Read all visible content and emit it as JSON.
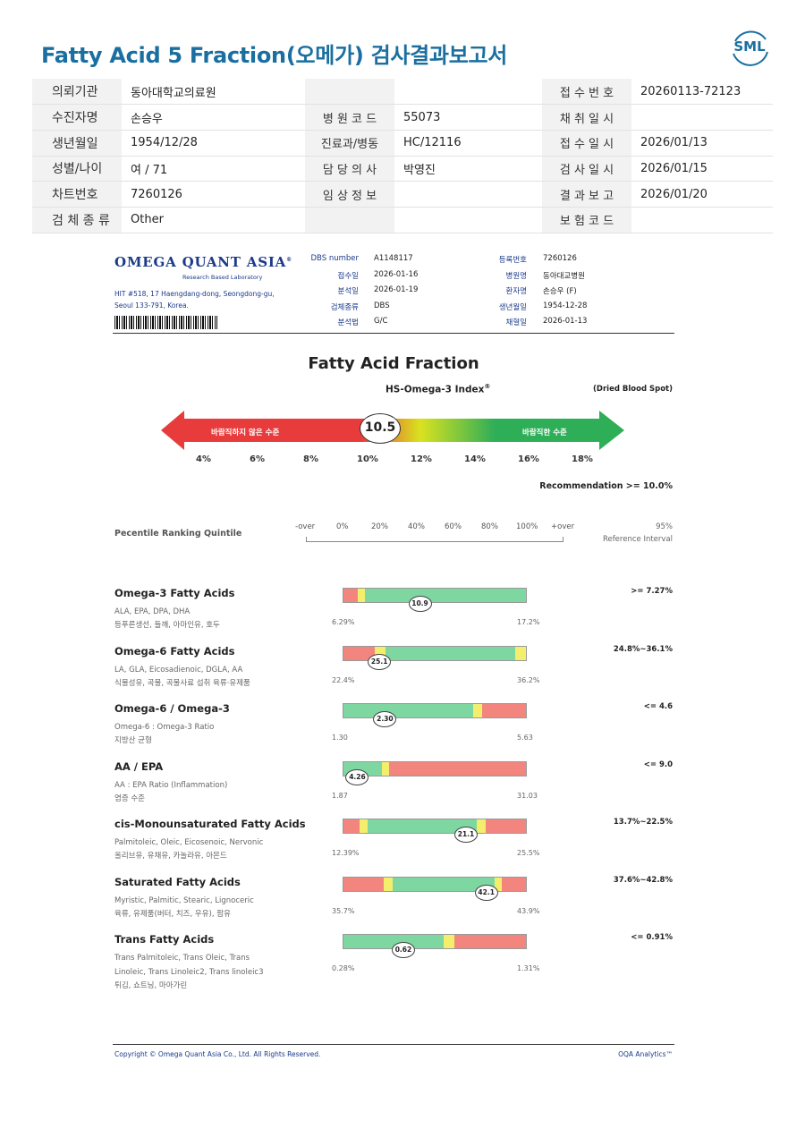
{
  "title": "Fatty Acid 5 Fraction(오메가) 검사결과보고서",
  "logo": "SML",
  "info": [
    [
      {
        "k": "의뢰기관",
        "v": "동아대학교의료원"
      },
      {
        "k": "",
        "v": ""
      },
      {
        "k": "접 수 번 호",
        "v": "20260113-72123"
      }
    ],
    [
      {
        "k": "수진자명",
        "v": "손승우"
      },
      {
        "k": "병 원 코 드",
        "v": "55073"
      },
      {
        "k": "채 취 일 시",
        "v": ""
      }
    ],
    [
      {
        "k": "생년월일",
        "v": "1954/12/28"
      },
      {
        "k": "진료과/병동",
        "v": "HC/12116"
      },
      {
        "k": "접 수 일 시",
        "v": "2026/01/13"
      }
    ],
    [
      {
        "k": "성별/나이",
        "v": "여 / 71"
      },
      {
        "k": "담 당 의 사",
        "v": "박영진"
      },
      {
        "k": "검 사 일 시",
        "v": "2026/01/15"
      }
    ],
    [
      {
        "k": "차트번호",
        "v": "7260126"
      },
      {
        "k": "임 상 정 보",
        "v": ""
      },
      {
        "k": "결 과 보 고",
        "v": "2026/01/20"
      }
    ],
    [
      {
        "k": "검 체 종 류",
        "v": "Other"
      },
      {
        "k": "",
        "v": ""
      },
      {
        "k": "보 험 코 드",
        "v": ""
      }
    ]
  ],
  "lab": {
    "brand": "OMEGA QUANT ASIA",
    "reg": "®",
    "subtitle": "Research Based Laboratory",
    "address": "HIT #518, 17 Haengdang-dong, Seongdong-gu, Seoul 133-791, Korea."
  },
  "meta_left": [
    {
      "k": "DBS number",
      "v": "A1148117"
    },
    {
      "k": "접수일",
      "v": "2026-01-16"
    },
    {
      "k": "분석일",
      "v": "2026-01-19"
    },
    {
      "k": "검체종류",
      "v": "DBS"
    },
    {
      "k": "분석법",
      "v": "G/C"
    }
  ],
  "meta_right": [
    {
      "k": "등록번호",
      "v": "7260126"
    },
    {
      "k": "병원명",
      "v": "동아대교병원"
    },
    {
      "k": "환자명",
      "v": "손승우 (F)"
    },
    {
      "k": "생년월일",
      "v": "1954-12-28"
    },
    {
      "k": "채혈일",
      "v": "2026-01-13"
    }
  ],
  "chart_title": "Fatty Acid Fraction",
  "index": {
    "label": "HS-Omega-3 Index",
    "sup": "®",
    "specimen": "(Dried Blood Spot)",
    "bad_label": "바람직하지 않은 수준",
    "good_label": "바람직한 수준",
    "value": "10.5",
    "value_num": 10.5,
    "ticks": [
      "4%",
      "6%",
      "8%",
      "10%",
      "12%",
      "14%",
      "16%",
      "18%"
    ],
    "recommendation": "Recommendation  >= 10.0%",
    "colors": {
      "red": "#e83b3b",
      "yellow": "#d9e21f",
      "green": "#2fae58"
    }
  },
  "percentile": {
    "label": "Pecentile Ranking Quintile",
    "scale": [
      "-over",
      "0%",
      "20%",
      "40%",
      "60%",
      "80%",
      "100%",
      "+over"
    ],
    "ref_title_1": "95%",
    "ref_title_2": "Reference Interval"
  },
  "chart_data": {
    "type": "table",
    "rows": [
      {
        "name": "Omega-3 Fatty Acids",
        "sub": "ALA, EPA, DPA, DHA",
        "foods": "등푸른생선, 들깨, 아마인유, 호두",
        "value": "10.9",
        "lo": "6.29%",
        "hi": "17.2%",
        "ref": ">= 7.27%",
        "pos": 0.42,
        "segments": [
          [
            "r",
            0.08
          ],
          [
            "y",
            0.04
          ],
          [
            "g",
            0.88
          ]
        ]
      },
      {
        "name": "Omega-6 Fatty Acids",
        "sub": "LA, GLA, Eicosadienoic, DGLA, AA",
        "foods": "식물성유, 곡물, 곡물사료 섭취 육류·유제품",
        "value": "25.1",
        "lo": "22.4%",
        "hi": "36.2%",
        "ref": "24.8%~36.1%",
        "pos": 0.2,
        "segments": [
          [
            "r",
            0.17
          ],
          [
            "y",
            0.06
          ],
          [
            "g",
            0.71
          ],
          [
            "y",
            0.06
          ]
        ]
      },
      {
        "name": "Omega-6 / Omega-3",
        "sub": "Omega-6 : Omega-3 Ratio",
        "foods": "지방산 균형",
        "value": "2.30",
        "lo": "1.30",
        "hi": "5.63",
        "ref": "<= 4.6",
        "pos": 0.23,
        "segments": [
          [
            "g",
            0.71
          ],
          [
            "y",
            0.05
          ],
          [
            "r",
            0.24
          ]
        ]
      },
      {
        "name": "AA / EPA",
        "sub": "AA : EPA Ratio (Inflammation)",
        "foods": "염증 수준",
        "value": "4.26",
        "lo": "1.87",
        "hi": "31.03",
        "ref": "<= 9.0",
        "pos": 0.08,
        "segments": [
          [
            "g",
            0.21
          ],
          [
            "y",
            0.04
          ],
          [
            "r",
            0.75
          ]
        ]
      },
      {
        "name": "cis-Monounsaturated Fatty Acids",
        "sub": "Palmitoleic, Oleic, Eicosenoic, Nervonic",
        "foods": "올리브유, 유채유, 카놀라유, 아몬드",
        "value": "21.1",
        "lo": "12.39%",
        "hi": "25.5%",
        "ref": "13.7%~22.5%",
        "pos": 0.67,
        "segments": [
          [
            "r",
            0.09
          ],
          [
            "y",
            0.04
          ],
          [
            "g",
            0.6
          ],
          [
            "y",
            0.05
          ],
          [
            "r",
            0.22
          ]
        ]
      },
      {
        "name": "Saturated Fatty Acids",
        "sub": "Myristic, Palmitic, Stearic, Lignoceric",
        "foods": "육류, 유제품(버터, 치즈, 우유), 팜유",
        "value": "42.1",
        "lo": "35.7%",
        "hi": "43.9%",
        "ref": "37.6%~42.8%",
        "pos": 0.78,
        "segments": [
          [
            "r",
            0.22
          ],
          [
            "y",
            0.05
          ],
          [
            "g",
            0.56
          ],
          [
            "y",
            0.04
          ],
          [
            "r",
            0.13
          ]
        ]
      },
      {
        "name": "Trans Fatty Acids",
        "sub": "Trans Palmitoleic, Trans Oleic, Trans\nLinoleic, Trans Linoleic2, Trans linoleic3",
        "foods": "튀김, 쇼트닝, 마아가린",
        "value": "0.62",
        "lo": "0.28%",
        "hi": "1.31%",
        "ref": "<= 0.91%",
        "pos": 0.33,
        "segments": [
          [
            "g",
            0.55
          ],
          [
            "y",
            0.06
          ],
          [
            "r",
            0.39
          ]
        ]
      }
    ]
  },
  "bar_colors": {
    "r": "#f3857f",
    "y": "#f3ef6d",
    "g": "#7ed6a1"
  },
  "footer": {
    "copyright": "Copyright © Omega Quant Asia Co., Ltd.  All Rights Reserved.",
    "brand": "OQA Analytics™"
  }
}
